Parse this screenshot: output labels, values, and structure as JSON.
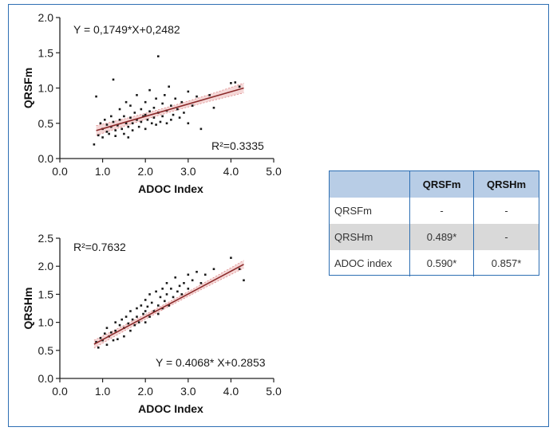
{
  "chart_data": [
    {
      "type": "scatter",
      "xlabel": "ADOC Index",
      "ylabel": "QRSFm",
      "xlim": [
        0,
        5
      ],
      "ylim": [
        0,
        2
      ],
      "x_ticks": [
        "0.0",
        "1.0",
        "2.0",
        "3.0",
        "4.0",
        "5.0"
      ],
      "y_ticks": [
        "0.0",
        "0.5",
        "1.0",
        "1.5",
        "2.0"
      ],
      "equation": "Y = 0,1749*X+0,2482",
      "r2_label": "R²=0.3335",
      "fit": {
        "slope": 0.1749,
        "intercept": 0.2482,
        "x_range": [
          0.85,
          4.3
        ]
      },
      "points": [
        [
          0.8,
          0.2
        ],
        [
          0.85,
          0.88
        ],
        [
          0.9,
          0.33
        ],
        [
          0.95,
          0.5
        ],
        [
          1.0,
          0.42
        ],
        [
          1.0,
          0.3
        ],
        [
          1.05,
          0.55
        ],
        [
          1.1,
          0.48
        ],
        [
          1.1,
          0.38
        ],
        [
          1.15,
          0.35
        ],
        [
          1.2,
          0.6
        ],
        [
          1.2,
          0.45
        ],
        [
          1.25,
          1.12
        ],
        [
          1.25,
          0.52
        ],
        [
          1.3,
          0.4
        ],
        [
          1.3,
          0.32
        ],
        [
          1.35,
          0.47
        ],
        [
          1.4,
          0.7
        ],
        [
          1.4,
          0.55
        ],
        [
          1.45,
          0.42
        ],
        [
          1.5,
          0.6
        ],
        [
          1.5,
          0.35
        ],
        [
          1.55,
          0.8
        ],
        [
          1.55,
          0.5
        ],
        [
          1.6,
          0.45
        ],
        [
          1.6,
          0.3
        ],
        [
          1.65,
          0.75
        ],
        [
          1.65,
          0.58
        ],
        [
          1.7,
          0.5
        ],
        [
          1.7,
          0.4
        ],
        [
          1.75,
          0.65
        ],
        [
          1.8,
          0.9
        ],
        [
          1.8,
          0.55
        ],
        [
          1.85,
          0.45
        ],
        [
          1.9,
          0.7
        ],
        [
          1.9,
          0.52
        ],
        [
          1.95,
          0.6
        ],
        [
          2.0,
          0.8
        ],
        [
          2.0,
          0.62
        ],
        [
          2.0,
          0.42
        ],
        [
          2.05,
          0.55
        ],
        [
          2.1,
          0.97
        ],
        [
          2.1,
          0.67
        ],
        [
          2.15,
          0.5
        ],
        [
          2.2,
          0.72
        ],
        [
          2.2,
          0.58
        ],
        [
          2.25,
          0.85
        ],
        [
          2.25,
          0.48
        ],
        [
          2.3,
          1.45
        ],
        [
          2.3,
          0.65
        ],
        [
          2.35,
          0.52
        ],
        [
          2.4,
          0.78
        ],
        [
          2.4,
          0.6
        ],
        [
          2.45,
          0.9
        ],
        [
          2.5,
          0.68
        ],
        [
          2.5,
          0.5
        ],
        [
          2.55,
          1.02
        ],
        [
          2.6,
          0.75
        ],
        [
          2.6,
          0.55
        ],
        [
          2.65,
          0.62
        ],
        [
          2.7,
          0.85
        ],
        [
          2.75,
          0.7
        ],
        [
          2.8,
          0.58
        ],
        [
          2.85,
          0.8
        ],
        [
          2.9,
          0.65
        ],
        [
          3.0,
          0.95
        ],
        [
          3.0,
          0.5
        ],
        [
          3.1,
          0.75
        ],
        [
          3.2,
          0.88
        ],
        [
          3.3,
          0.42
        ],
        [
          3.5,
          0.9
        ],
        [
          3.6,
          0.72
        ],
        [
          4.0,
          1.07
        ],
        [
          4.1,
          1.08
        ],
        [
          4.2,
          1.02
        ]
      ]
    },
    {
      "type": "scatter",
      "xlabel": "ADOC Index",
      "ylabel": "QRSHm",
      "xlim": [
        0,
        5
      ],
      "ylim": [
        0,
        2.5
      ],
      "x_ticks": [
        "0.0",
        "1.0",
        "2.0",
        "3.0",
        "4.0",
        "5.0"
      ],
      "y_ticks": [
        "0.0",
        "0.5",
        "1.0",
        "1.5",
        "2.0",
        "2.5"
      ],
      "equation": "Y = 0.4068* X+0.2853",
      "r2_label": "R²=0.7632",
      "fit": {
        "slope": 0.4068,
        "intercept": 0.2853,
        "x_range": [
          0.8,
          4.3
        ]
      },
      "points": [
        [
          0.85,
          0.65
        ],
        [
          0.9,
          0.55
        ],
        [
          0.95,
          0.72
        ],
        [
          1.0,
          0.68
        ],
        [
          1.05,
          0.8
        ],
        [
          1.1,
          0.6
        ],
        [
          1.1,
          0.9
        ],
        [
          1.15,
          0.75
        ],
        [
          1.2,
          0.82
        ],
        [
          1.25,
          0.68
        ],
        [
          1.3,
          1.0
        ],
        [
          1.3,
          0.85
        ],
        [
          1.35,
          0.7
        ],
        [
          1.4,
          0.95
        ],
        [
          1.45,
          1.05
        ],
        [
          1.5,
          0.9
        ],
        [
          1.5,
          0.75
        ],
        [
          1.55,
          1.1
        ],
        [
          1.6,
          0.98
        ],
        [
          1.65,
          1.2
        ],
        [
          1.65,
          0.85
        ],
        [
          1.7,
          1.05
        ],
        [
          1.75,
          0.95
        ],
        [
          1.8,
          1.25
        ],
        [
          1.8,
          1.1
        ],
        [
          1.85,
          1.0
        ],
        [
          1.9,
          1.3
        ],
        [
          1.95,
          1.15
        ],
        [
          2.0,
          1.4
        ],
        [
          2.0,
          1.2
        ],
        [
          2.0,
          1.0
        ],
        [
          2.05,
          1.28
        ],
        [
          2.1,
          1.5
        ],
        [
          2.1,
          1.1
        ],
        [
          2.15,
          1.35
        ],
        [
          2.2,
          1.2
        ],
        [
          2.25,
          1.55
        ],
        [
          2.3,
          1.3
        ],
        [
          2.3,
          1.15
        ],
        [
          2.35,
          1.45
        ],
        [
          2.4,
          1.6
        ],
        [
          2.4,
          1.25
        ],
        [
          2.45,
          1.38
        ],
        [
          2.5,
          1.7
        ],
        [
          2.5,
          1.5
        ],
        [
          2.55,
          1.3
        ],
        [
          2.6,
          1.6
        ],
        [
          2.65,
          1.45
        ],
        [
          2.7,
          1.8
        ],
        [
          2.75,
          1.55
        ],
        [
          2.8,
          1.65
        ],
        [
          2.85,
          1.5
        ],
        [
          2.9,
          1.7
        ],
        [
          3.0,
          1.85
        ],
        [
          3.0,
          1.6
        ],
        [
          3.1,
          1.75
        ],
        [
          3.2,
          1.9
        ],
        [
          3.3,
          1.7
        ],
        [
          3.4,
          1.85
        ],
        [
          3.6,
          1.95
        ],
        [
          4.0,
          2.15
        ],
        [
          4.2,
          1.95
        ],
        [
          4.3,
          1.75
        ]
      ]
    }
  ],
  "table": {
    "headers": [
      "",
      "QRSFm",
      "QRSHm"
    ],
    "rows": [
      [
        "QRSFm",
        "-",
        "-"
      ],
      [
        "QRSHm",
        "0.489*",
        "-"
      ],
      [
        "ADOC index",
        "0.590*",
        "0.857*"
      ]
    ]
  },
  "colors": {
    "frame": "#2e6fb3",
    "table_header_bg": "#b8cde6",
    "table_shaded_row": "#d9d9d9",
    "fit_line": "#8b2a2a",
    "ci_band": "#e9a8a8",
    "points": "#1a1a1a"
  }
}
